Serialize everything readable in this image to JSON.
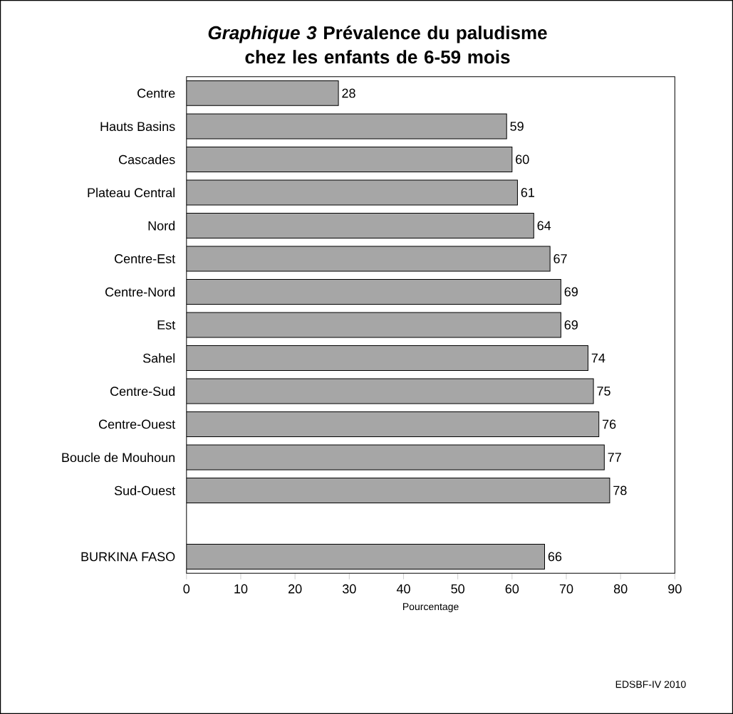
{
  "chart_data": {
    "type": "bar",
    "orientation": "horizontal",
    "title": "*Graphique 3*  Prévalence du paludisme chez les enfants de 6-59 mois",
    "xlabel": "Pourcentage",
    "annotations": [
      "EDSBF-IV 2010"
    ],
    "categories": [
      "Centre",
      "Hauts Basins",
      "Cascades",
      "Plateau Central",
      "Nord",
      "Centre-Est",
      "Centre-Nord",
      "Est",
      "Sahel",
      "Centre-Sud",
      "Centre-Ouest",
      "Boucle de Mouhoun",
      "Sud-Ouest",
      null,
      "BURKINA FASO"
    ],
    "values": [
      28,
      59,
      60,
      61,
      64,
      67,
      69,
      69,
      74,
      75,
      76,
      77,
      78,
      null,
      66
    ],
    "color": "#a6a6a6",
    "data_labels": true,
    "xlim": [
      0,
      90
    ],
    "xticks": [
      0,
      10,
      20,
      30,
      40,
      50,
      60,
      70,
      80,
      90
    ]
  }
}
